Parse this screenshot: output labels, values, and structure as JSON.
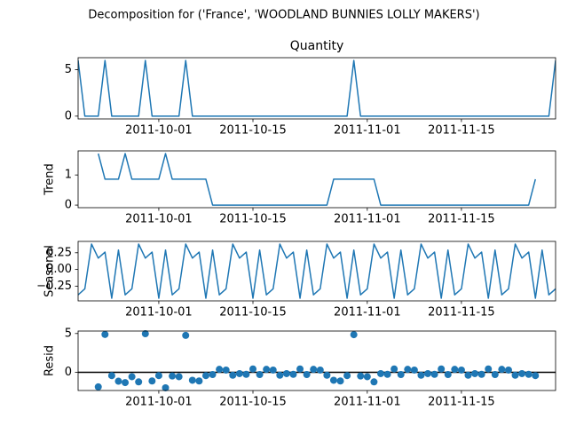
{
  "title": "Decomposition for ('France', 'WOODLAND BUNNIES LOLLY MAKERS')",
  "chart_data": [
    {
      "type": "line",
      "title": "Quantity",
      "color": "#1f77b4",
      "x": [
        "2011-09-19",
        "2011-09-20",
        "2011-09-21",
        "2011-09-22",
        "2011-09-23",
        "2011-09-24",
        "2011-09-25",
        "2011-09-26",
        "2011-09-27",
        "2011-09-28",
        "2011-09-29",
        "2011-09-30",
        "2011-10-01",
        "2011-10-02",
        "2011-10-03",
        "2011-10-04",
        "2011-10-05",
        "2011-10-06",
        "2011-10-07",
        "2011-10-08",
        "2011-10-09",
        "2011-10-10",
        "2011-10-11",
        "2011-10-12",
        "2011-10-13",
        "2011-10-14",
        "2011-10-15",
        "2011-10-16",
        "2011-10-17",
        "2011-10-18",
        "2011-10-19",
        "2011-10-20",
        "2011-10-21",
        "2011-10-22",
        "2011-10-23",
        "2011-10-24",
        "2011-10-25",
        "2011-10-26",
        "2011-10-27",
        "2011-10-28",
        "2011-10-29",
        "2011-10-30",
        "2011-10-31",
        "2011-11-01",
        "2011-11-02",
        "2011-11-03",
        "2011-11-04",
        "2011-11-05",
        "2011-11-06",
        "2011-11-07",
        "2011-11-08",
        "2011-11-09",
        "2011-11-10",
        "2011-11-11",
        "2011-11-12",
        "2011-11-13",
        "2011-11-14",
        "2011-11-15",
        "2011-11-16",
        "2011-11-17",
        "2011-11-18",
        "2011-11-19",
        "2011-11-20",
        "2011-11-21",
        "2011-11-22",
        "2011-11-23",
        "2011-11-24",
        "2011-11-25",
        "2011-11-26",
        "2011-11-27",
        "2011-11-28",
        "2011-11-29"
      ],
      "values": [
        6,
        0,
        0,
        0,
        6,
        0,
        0,
        0,
        0,
        0,
        6,
        0,
        0,
        0,
        0,
        0,
        6,
        0,
        0,
        0,
        0,
        0,
        0,
        0,
        0,
        0,
        0,
        0,
        0,
        0,
        0,
        0,
        0,
        0,
        0,
        0,
        0,
        0,
        0,
        0,
        0,
        6,
        0,
        0,
        0,
        0,
        0,
        0,
        0,
        0,
        0,
        0,
        0,
        0,
        0,
        0,
        0,
        0,
        0,
        0,
        0,
        0,
        0,
        0,
        0,
        0,
        0,
        0,
        0,
        0,
        0,
        6
      ],
      "xlim": [
        "2011-09-19",
        "2011-11-29"
      ],
      "xticks": [
        "2011-10-01",
        "2011-10-15",
        "2011-11-01",
        "2011-11-15"
      ],
      "ylim": [
        -0.3,
        6.3
      ],
      "yticks": [
        0,
        5
      ]
    },
    {
      "type": "line",
      "ylabel": "Trend",
      "color": "#1f77b4",
      "x": [
        "2011-09-19",
        "2011-09-20",
        "2011-09-21",
        "2011-09-22",
        "2011-09-23",
        "2011-09-24",
        "2011-09-25",
        "2011-09-26",
        "2011-09-27",
        "2011-09-28",
        "2011-09-29",
        "2011-09-30",
        "2011-10-01",
        "2011-10-02",
        "2011-10-03",
        "2011-10-04",
        "2011-10-05",
        "2011-10-06",
        "2011-10-07",
        "2011-10-08",
        "2011-10-09",
        "2011-10-10",
        "2011-10-11",
        "2011-10-12",
        "2011-10-13",
        "2011-10-14",
        "2011-10-15",
        "2011-10-16",
        "2011-10-17",
        "2011-10-18",
        "2011-10-19",
        "2011-10-20",
        "2011-10-21",
        "2011-10-22",
        "2011-10-23",
        "2011-10-24",
        "2011-10-25",
        "2011-10-26",
        "2011-10-27",
        "2011-10-28",
        "2011-10-29",
        "2011-10-30",
        "2011-10-31",
        "2011-11-01",
        "2011-11-02",
        "2011-11-03",
        "2011-11-04",
        "2011-11-05",
        "2011-11-06",
        "2011-11-07",
        "2011-11-08",
        "2011-11-09",
        "2011-11-10",
        "2011-11-11",
        "2011-11-12",
        "2011-11-13",
        "2011-11-14",
        "2011-11-15",
        "2011-11-16",
        "2011-11-17",
        "2011-11-18",
        "2011-11-19",
        "2011-11-20",
        "2011-11-21",
        "2011-11-22",
        "2011-11-23",
        "2011-11-24",
        "2011-11-25",
        "2011-11-26",
        "2011-11-27",
        "2011-11-28",
        "2011-11-29"
      ],
      "values": [
        null,
        null,
        null,
        1.71,
        0.86,
        0.86,
        0.86,
        1.71,
        0.86,
        0.86,
        0.86,
        0.86,
        0.86,
        1.71,
        0.86,
        0.86,
        0.86,
        0.86,
        0.86,
        0.86,
        0,
        0,
        0,
        0,
        0,
        0,
        0,
        0,
        0,
        0,
        0,
        0,
        0,
        0,
        0,
        0,
        0,
        0,
        0.86,
        0.86,
        0.86,
        0.86,
        0.86,
        0.86,
        0.86,
        0,
        0,
        0,
        0,
        0,
        0,
        0,
        0,
        0,
        0,
        0,
        0,
        0,
        0,
        0,
        0,
        0,
        0,
        0,
        0,
        0,
        0,
        0,
        0.86,
        null,
        null,
        null
      ],
      "xlim": [
        "2011-09-19",
        "2011-11-29"
      ],
      "xticks": [
        "2011-10-01",
        "2011-10-15",
        "2011-11-01",
        "2011-11-15"
      ],
      "ylim": [
        -0.086,
        1.8
      ],
      "yticks": [
        0,
        1
      ]
    },
    {
      "type": "line",
      "ylabel": "Seasonal",
      "color": "#1f77b4",
      "x": [
        "2011-09-19",
        "2011-09-20",
        "2011-09-21",
        "2011-09-22",
        "2011-09-23",
        "2011-09-24",
        "2011-09-25",
        "2011-09-26",
        "2011-09-27",
        "2011-09-28",
        "2011-09-29",
        "2011-09-30",
        "2011-10-01",
        "2011-10-02",
        "2011-10-03",
        "2011-10-04",
        "2011-10-05",
        "2011-10-06",
        "2011-10-07",
        "2011-10-08",
        "2011-10-09",
        "2011-10-10",
        "2011-10-11",
        "2011-10-12",
        "2011-10-13",
        "2011-10-14",
        "2011-10-15",
        "2011-10-16",
        "2011-10-17",
        "2011-10-18",
        "2011-10-19",
        "2011-10-20",
        "2011-10-21",
        "2011-10-22",
        "2011-10-23",
        "2011-10-24",
        "2011-10-25",
        "2011-10-26",
        "2011-10-27",
        "2011-10-28",
        "2011-10-29",
        "2011-10-30",
        "2011-10-31",
        "2011-11-01",
        "2011-11-02",
        "2011-11-03",
        "2011-11-04",
        "2011-11-05",
        "2011-11-06",
        "2011-11-07",
        "2011-11-08",
        "2011-11-09",
        "2011-11-10",
        "2011-11-11",
        "2011-11-12",
        "2011-11-13",
        "2011-11-14",
        "2011-11-15",
        "2011-11-16",
        "2011-11-17",
        "2011-11-18",
        "2011-11-19",
        "2011-11-20",
        "2011-11-21",
        "2011-11-22",
        "2011-11-23",
        "2011-11-24",
        "2011-11-25",
        "2011-11-26",
        "2011-11-27",
        "2011-11-28",
        "2011-11-29"
      ],
      "values": [
        -0.38,
        -0.29,
        0.38,
        0.17,
        0.26,
        -0.43,
        0.29,
        -0.38,
        -0.29,
        0.38,
        0.17,
        0.26,
        -0.43,
        0.29,
        -0.38,
        -0.29,
        0.38,
        0.17,
        0.26,
        -0.43,
        0.29,
        -0.38,
        -0.29,
        0.38,
        0.17,
        0.26,
        -0.43,
        0.29,
        -0.38,
        -0.29,
        0.38,
        0.17,
        0.26,
        -0.43,
        0.29,
        -0.38,
        -0.29,
        0.38,
        0.17,
        0.26,
        -0.43,
        0.29,
        -0.38,
        -0.29,
        0.38,
        0.17,
        0.26,
        -0.43,
        0.29,
        -0.38,
        -0.29,
        0.38,
        0.17,
        0.26,
        -0.43,
        0.29,
        -0.38,
        -0.29,
        0.38,
        0.17,
        0.26,
        -0.43,
        0.29,
        -0.38,
        -0.29,
        0.38,
        0.17,
        0.26,
        -0.43,
        0.29,
        -0.38,
        -0.29
      ],
      "xlim": [
        "2011-09-19",
        "2011-11-29"
      ],
      "xticks": [
        "2011-10-01",
        "2011-10-15",
        "2011-11-01",
        "2011-11-15"
      ],
      "ylim": [
        -0.47,
        0.42
      ],
      "yticks": [
        {
          "value": -0.25,
          "label": "−0.25"
        },
        {
          "value": 0,
          "label": "0.00"
        },
        {
          "value": 0.25,
          "label": "0.25"
        }
      ]
    },
    {
      "type": "scatter",
      "ylabel": "Resid",
      "color": "#1f77b4",
      "baseline": 0,
      "x": [
        "2011-09-19",
        "2011-09-20",
        "2011-09-21",
        "2011-09-22",
        "2011-09-23",
        "2011-09-24",
        "2011-09-25",
        "2011-09-26",
        "2011-09-27",
        "2011-09-28",
        "2011-09-29",
        "2011-09-30",
        "2011-10-01",
        "2011-10-02",
        "2011-10-03",
        "2011-10-04",
        "2011-10-05",
        "2011-10-06",
        "2011-10-07",
        "2011-10-08",
        "2011-10-09",
        "2011-10-10",
        "2011-10-11",
        "2011-10-12",
        "2011-10-13",
        "2011-10-14",
        "2011-10-15",
        "2011-10-16",
        "2011-10-17",
        "2011-10-18",
        "2011-10-19",
        "2011-10-20",
        "2011-10-21",
        "2011-10-22",
        "2011-10-23",
        "2011-10-24",
        "2011-10-25",
        "2011-10-26",
        "2011-10-27",
        "2011-10-28",
        "2011-10-29",
        "2011-10-30",
        "2011-10-31",
        "2011-11-01",
        "2011-11-02",
        "2011-11-03",
        "2011-11-04",
        "2011-11-05",
        "2011-11-06",
        "2011-11-07",
        "2011-11-08",
        "2011-11-09",
        "2011-11-10",
        "2011-11-11",
        "2011-11-12",
        "2011-11-13",
        "2011-11-14",
        "2011-11-15",
        "2011-11-16",
        "2011-11-17",
        "2011-11-18",
        "2011-11-19",
        "2011-11-20",
        "2011-11-21",
        "2011-11-22",
        "2011-11-23",
        "2011-11-24",
        "2011-11-25",
        "2011-11-26",
        "2011-11-27",
        "2011-11-28",
        "2011-11-29"
      ],
      "values": [
        null,
        null,
        null,
        -1.88,
        4.88,
        -0.43,
        -1.15,
        -1.33,
        -0.57,
        -1.24,
        4.97,
        -1.12,
        -0.43,
        -2.0,
        -0.48,
        -0.57,
        4.76,
        -1.03,
        -1.12,
        -0.43,
        -0.29,
        0.38,
        0.29,
        -0.38,
        -0.17,
        -0.26,
        0.43,
        -0.29,
        0.38,
        0.29,
        -0.38,
        -0.17,
        -0.26,
        0.43,
        -0.29,
        0.38,
        0.29,
        -0.38,
        -1.03,
        -1.12,
        -0.43,
        4.85,
        -0.48,
        -0.57,
        -1.24,
        -0.17,
        -0.26,
        0.43,
        -0.29,
        0.38,
        0.29,
        -0.38,
        -0.17,
        -0.26,
        0.43,
        -0.29,
        0.38,
        0.29,
        -0.38,
        -0.17,
        -0.26,
        0.43,
        -0.29,
        0.38,
        0.29,
        -0.38,
        -0.17,
        -0.26,
        -0.43,
        null,
        null,
        null
      ],
      "xlim": [
        "2011-09-19",
        "2011-11-29"
      ],
      "xticks": [
        "2011-10-01",
        "2011-10-15",
        "2011-11-01",
        "2011-11-15"
      ],
      "ylim": [
        -2.35,
        5.32
      ],
      "yticks": [
        0,
        5
      ]
    }
  ]
}
